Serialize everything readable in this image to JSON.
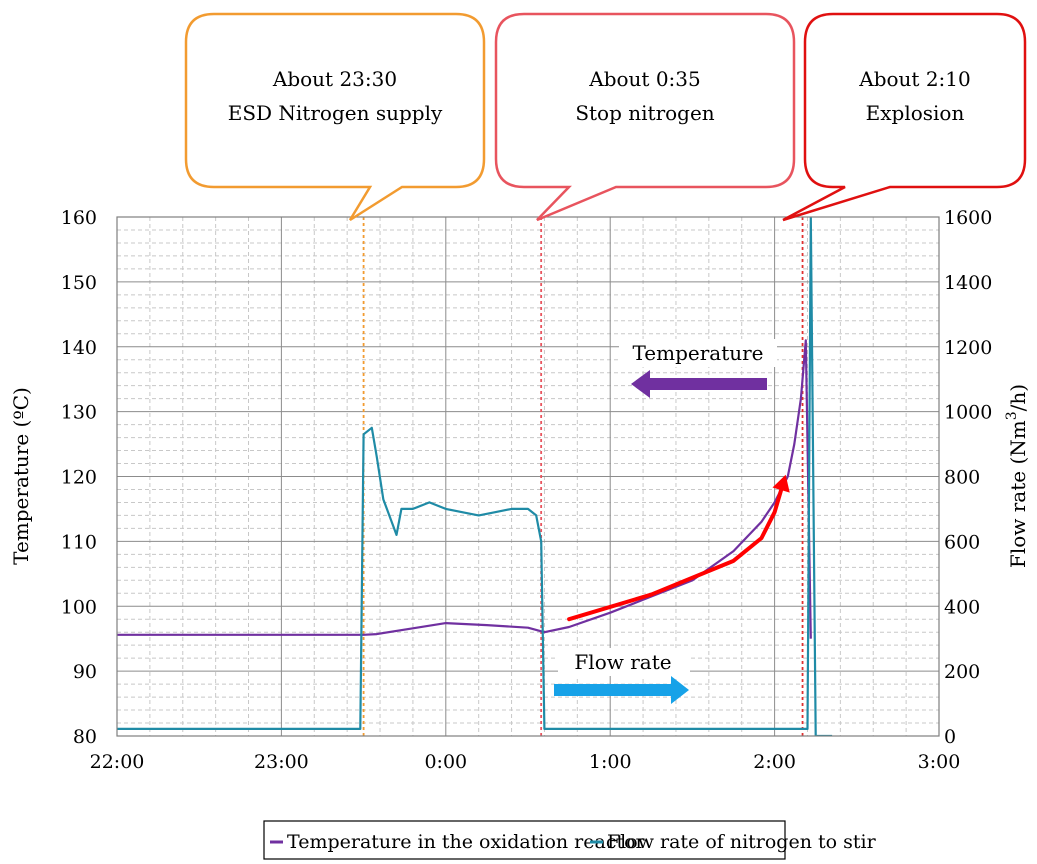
{
  "chart_data": {
    "type": "line",
    "x_axis": {
      "label": "",
      "ticks": [
        "22:00",
        "23:00",
        "0:00",
        "1:00",
        "2:00",
        "3:00"
      ],
      "range_hours": [
        22,
        27
      ],
      "minor_gridlines_per_major": 5
    },
    "y_left": {
      "label": "Temperature (ºC)",
      "range": [
        80,
        160
      ],
      "ticks": [
        80,
        90,
        100,
        110,
        120,
        130,
        140,
        150,
        160
      ]
    },
    "y_right": {
      "label": "Flow rate (Nm",
      "label_sup": "3",
      "label_tail": "/h)",
      "range": [
        0,
        1600
      ],
      "ticks": [
        0,
        200,
        400,
        600,
        800,
        1000,
        1200,
        1400,
        1600
      ]
    },
    "grid": true,
    "series": [
      {
        "name": "Temperature in the oxidation reactor",
        "axis": "left",
        "color": "#7030a0",
        "x_hours": [
          22.0,
          22.5,
          23.0,
          23.5,
          23.58,
          23.8,
          24.0,
          24.25,
          24.5,
          24.6,
          24.75,
          25.0,
          25.25,
          25.5,
          25.75,
          25.92,
          26.0,
          26.08,
          26.12,
          26.16,
          26.19,
          26.22
        ],
        "values": [
          95.6,
          95.6,
          95.6,
          95.6,
          95.7,
          96.6,
          97.4,
          97.1,
          96.7,
          96.0,
          96.8,
          99.0,
          101.5,
          104.0,
          108.5,
          113.0,
          116.0,
          120.0,
          125.0,
          132.0,
          141.0,
          95.0
        ]
      },
      {
        "name": "Flow rate of nitrogen to stir",
        "axis": "right",
        "color": "#1f8ba6",
        "x_hours": [
          22.0,
          23.48,
          23.5,
          23.55,
          23.58,
          23.62,
          23.7,
          23.73,
          23.8,
          23.9,
          24.0,
          24.1,
          24.2,
          24.3,
          24.4,
          24.5,
          24.55,
          24.58,
          24.6,
          25.0,
          25.5,
          26.0,
          26.2,
          26.22,
          26.25,
          26.35
        ],
        "values": [
          22,
          22,
          930,
          950,
          860,
          730,
          620,
          700,
          700,
          720,
          700,
          690,
          680,
          690,
          700,
          700,
          680,
          600,
          22,
          22,
          22,
          22,
          22,
          1600,
          0,
          0
        ]
      }
    ],
    "event_lines": [
      {
        "x_hours": 23.5,
        "color": "#f29b30"
      },
      {
        "x_hours": 24.58,
        "color": "#e8545e"
      },
      {
        "x_hours": 26.17,
        "color": "#e03030"
      }
    ],
    "trend_arrow": {
      "color": "#ff0000",
      "x_hours": [
        24.75,
        25.25,
        25.75,
        25.92,
        26.0,
        26.05
      ],
      "values": [
        98.0,
        101.8,
        107.0,
        110.5,
        114.5,
        118.8
      ]
    },
    "annotations": [
      {
        "id": "temperature",
        "text": "Temperature",
        "arrow_direction": "left",
        "arrow_color": "#7030a0"
      },
      {
        "id": "flow",
        "text": "Flow rate",
        "arrow_direction": "right",
        "arrow_color": "#17a2e8"
      }
    ],
    "callouts": [
      {
        "line1": "About 23:30",
        "line2": "ESD Nitrogen supply",
        "color": "#f29b30"
      },
      {
        "line1": "About 0:35",
        "line2": "Stop nitrogen",
        "color": "#e8545e"
      },
      {
        "line1": "About 2:10",
        "line2": "Explosion",
        "color": "#e01010"
      }
    ],
    "legend": {
      "placement": "bottom-center"
    }
  }
}
